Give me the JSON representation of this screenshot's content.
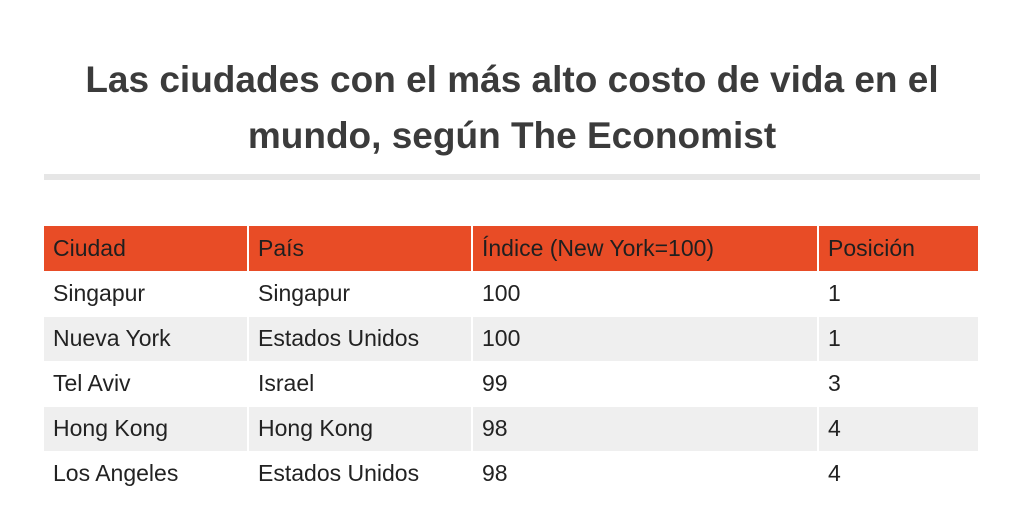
{
  "title": "Las ciudades con el más alto costo de vida en el mundo, según The Economist",
  "chart_data": {
    "type": "table",
    "title": "Las ciudades con el más alto costo de vida en el mundo, según The Economist",
    "columns": [
      "Ciudad",
      "País",
      "Índice (New York=100)",
      "Posición"
    ],
    "rows": [
      [
        "Singapur",
        "Singapur",
        "100",
        "1"
      ],
      [
        "Nueva York",
        "Estados Unidos",
        "100",
        "1"
      ],
      [
        "Tel Aviv",
        "Israel",
        "99",
        "3"
      ],
      [
        "Hong Kong",
        "Hong Kong",
        "98",
        "4"
      ],
      [
        "Los Angeles",
        "Estados Unidos",
        "98",
        "4"
      ]
    ]
  },
  "colors": {
    "header_bg": "#e84c26",
    "stripe_bg": "#efefef",
    "title_text": "#3b3b3b"
  }
}
